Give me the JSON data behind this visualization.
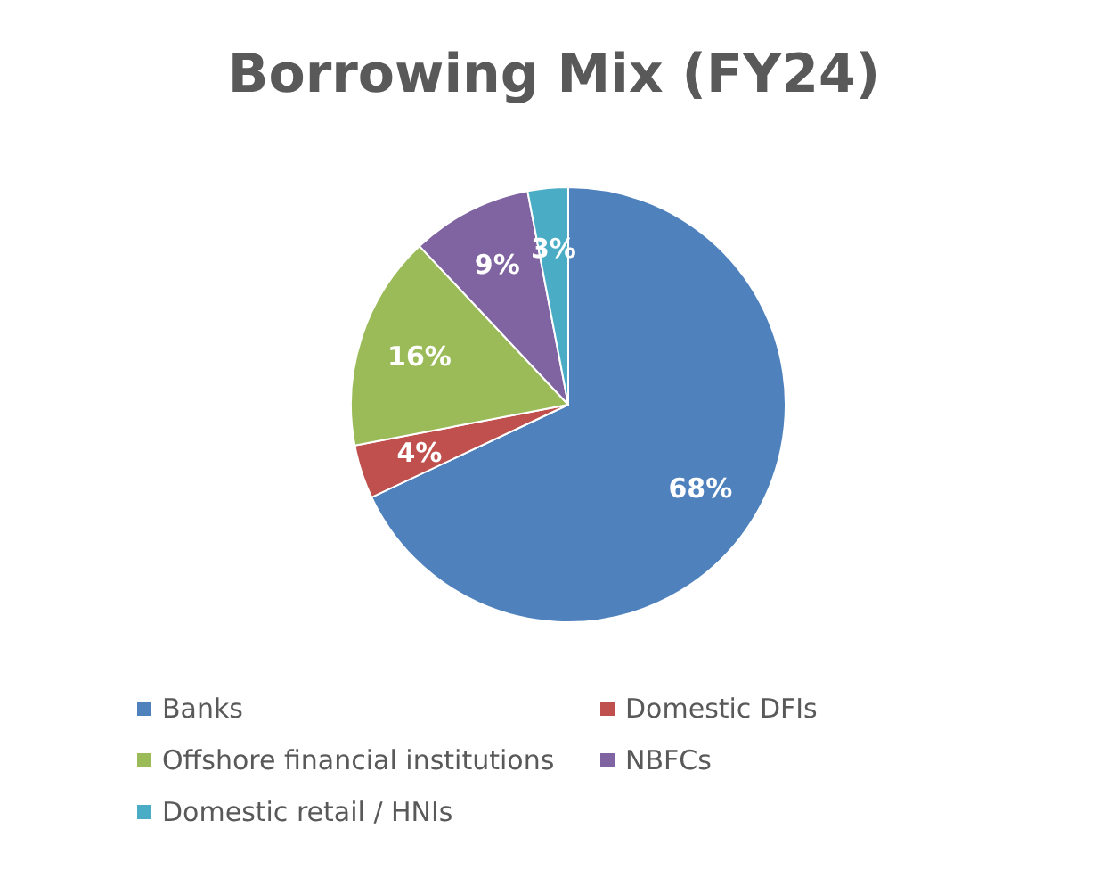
{
  "chart_data": {
    "type": "pie",
    "title": "Borrowing Mix (FY24)",
    "categories": [
      "Banks",
      "Domestic DFIs",
      "Offshore financial institutions",
      "NBFCs",
      "Domestic retail / HNIs"
    ],
    "values": [
      68,
      4,
      16,
      9,
      3
    ],
    "value_labels": [
      "68%",
      "4%",
      "16%",
      "9%",
      "3%"
    ],
    "colors": [
      "#4f81bd",
      "#c0504d",
      "#9bbb59",
      "#8064a2",
      "#4bacc6"
    ],
    "legend": "bottom"
  }
}
